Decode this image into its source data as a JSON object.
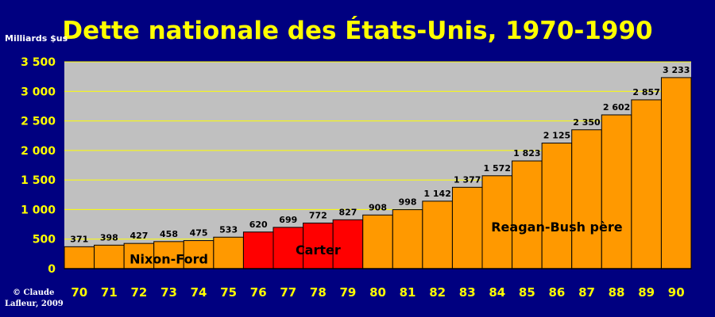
{
  "chart_data": {
    "type": "bar",
    "title": "Dette nationale des États-Unis, 1970-1990",
    "ylabel": "Milliards $us",
    "xlabel": "",
    "categories": [
      "70",
      "71",
      "72",
      "73",
      "74",
      "75",
      "76",
      "77",
      "78",
      "79",
      "80",
      "81",
      "82",
      "83",
      "84",
      "85",
      "86",
      "87",
      "88",
      "89",
      "90"
    ],
    "values": [
      371,
      398,
      427,
      458,
      475,
      533,
      620,
      699,
      772,
      827,
      908,
      998,
      1142,
      1377,
      1572,
      1823,
      2125,
      2350,
      2602,
      2857,
      3233
    ],
    "value_labels": [
      "371",
      "398",
      "427",
      "458",
      "475",
      "533",
      "620",
      "699",
      "772",
      "827",
      "908",
      "998",
      "1 142",
      "1 377",
      "1 572",
      "1 823",
      "2 125",
      "2 350",
      "2 602",
      "2 857",
      "3 233"
    ],
    "yticks": [
      0,
      500,
      1000,
      1500,
      2000,
      2500,
      3000,
      3500
    ],
    "ytick_labels": [
      "0",
      "500",
      "1 000",
      "1 500",
      "2 000",
      "2 500",
      "3 000",
      "3 500"
    ],
    "ylim": [
      0,
      3500
    ],
    "grid": true,
    "bar_colors": [
      "#FF9900",
      "#FF9900",
      "#FF9900",
      "#FF9900",
      "#FF9900",
      "#FF9900",
      "#FF0000",
      "#FF0000",
      "#FF0000",
      "#FF0000",
      "#FF9900",
      "#FF9900",
      "#FF9900",
      "#FF9900",
      "#FF9900",
      "#FF9900",
      "#FF9900",
      "#FF9900",
      "#FF9900",
      "#FF9900",
      "#FF9900"
    ],
    "annotations": [
      {
        "text": "Nixon-Ford",
        "x": "73",
        "y": 170
      },
      {
        "text": "Carter",
        "x": "78",
        "y": 320
      },
      {
        "text": "Reagan-Bush père",
        "x": "86",
        "y": 710
      }
    ],
    "credit_lines": [
      "© Claude",
      "Lafleur, 2009"
    ]
  },
  "colors": {
    "background": "#000080",
    "plot_background": "#C0C0C0",
    "gridline": "#FFFF00",
    "title": "#FFFF00",
    "axis_text": "#FFFF00",
    "bar_default": "#FF9900",
    "bar_carter": "#FF0000"
  }
}
